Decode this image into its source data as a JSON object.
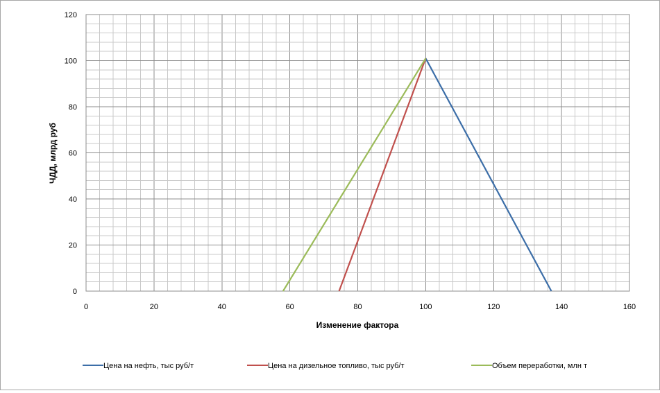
{
  "chart_data": {
    "type": "line",
    "title": "",
    "xlabel": "Изменение фактора",
    "ylabel": "ЧДД, млрд руб",
    "xlim": [
      0,
      160
    ],
    "ylim": [
      0,
      120
    ],
    "x_ticks": [
      0,
      20,
      40,
      60,
      80,
      100,
      120,
      140,
      160
    ],
    "y_ticks": [
      0,
      20,
      40,
      60,
      80,
      100,
      120
    ],
    "grid": true,
    "legend_position": "bottom",
    "series": [
      {
        "name": "Цена на нефть, тыс руб/т",
        "color": "#3c6ea8",
        "x": [
          100,
          137
        ],
        "y": [
          101,
          0
        ]
      },
      {
        "name": "Цена на дизельное топливо, тыс руб/т",
        "color": "#c0504d",
        "x": [
          74.5,
          100
        ],
        "y": [
          0,
          101
        ]
      },
      {
        "name": "Объем переработки, млн т",
        "color": "#9bbb59",
        "x": [
          58,
          100
        ],
        "y": [
          0,
          101
        ]
      }
    ]
  }
}
